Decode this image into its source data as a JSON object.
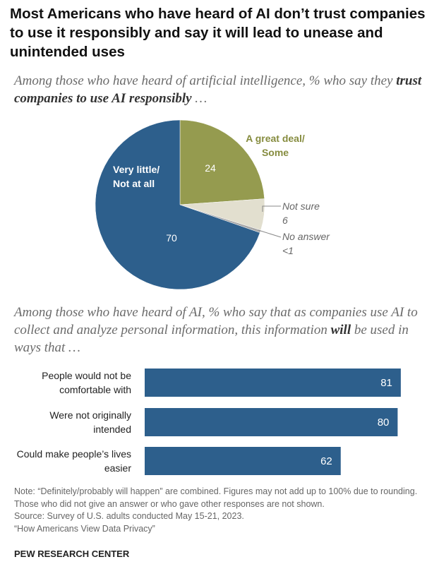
{
  "title": "Most Americans who have heard of AI don’t trust companies to use it responsibly and say it will lead to unease and unintended uses",
  "chart_data": [
    {
      "type": "pie",
      "subtitle": [
        "Among those who have heard of artificial intelligence, % who say they ",
        "trust companies to use AI responsibly",
        " …"
      ],
      "categories": [
        "A great deal/ Some",
        "Not sure",
        "No answer",
        "Very little/ Not at all"
      ],
      "values": [
        24,
        6,
        0.5,
        70
      ],
      "value_labels": [
        "24",
        "6",
        "<1",
        "70"
      ],
      "colors": [
        "#959b4f",
        "#e2dfcf",
        "#a6a6a6",
        "#2d5f8c"
      ]
    },
    {
      "type": "bar",
      "subtitle": [
        "Among those who have heard of AI, % who say that as companies use AI to collect and analyze personal information, this information ",
        "will",
        " be used in ways that …"
      ],
      "categories": [
        "People would not be comfortable with",
        "Were not originally intended",
        "Could make people’s lives easier"
      ],
      "values": [
        81,
        80,
        62
      ],
      "color": "#2d5f8c",
      "xlim": [
        0,
        100
      ]
    }
  ],
  "note": "Note: “Definitely/probably will happen” are combined. Figures may not add up to 100% due to rounding. Those who did not give an answer or who gave other responses are not shown.",
  "source": "Source: Survey of U.S. adults conducted May 15-21, 2023.",
  "report": "“How Americans View Data Privacy”",
  "footer": "PEW RESEARCH CENTER"
}
